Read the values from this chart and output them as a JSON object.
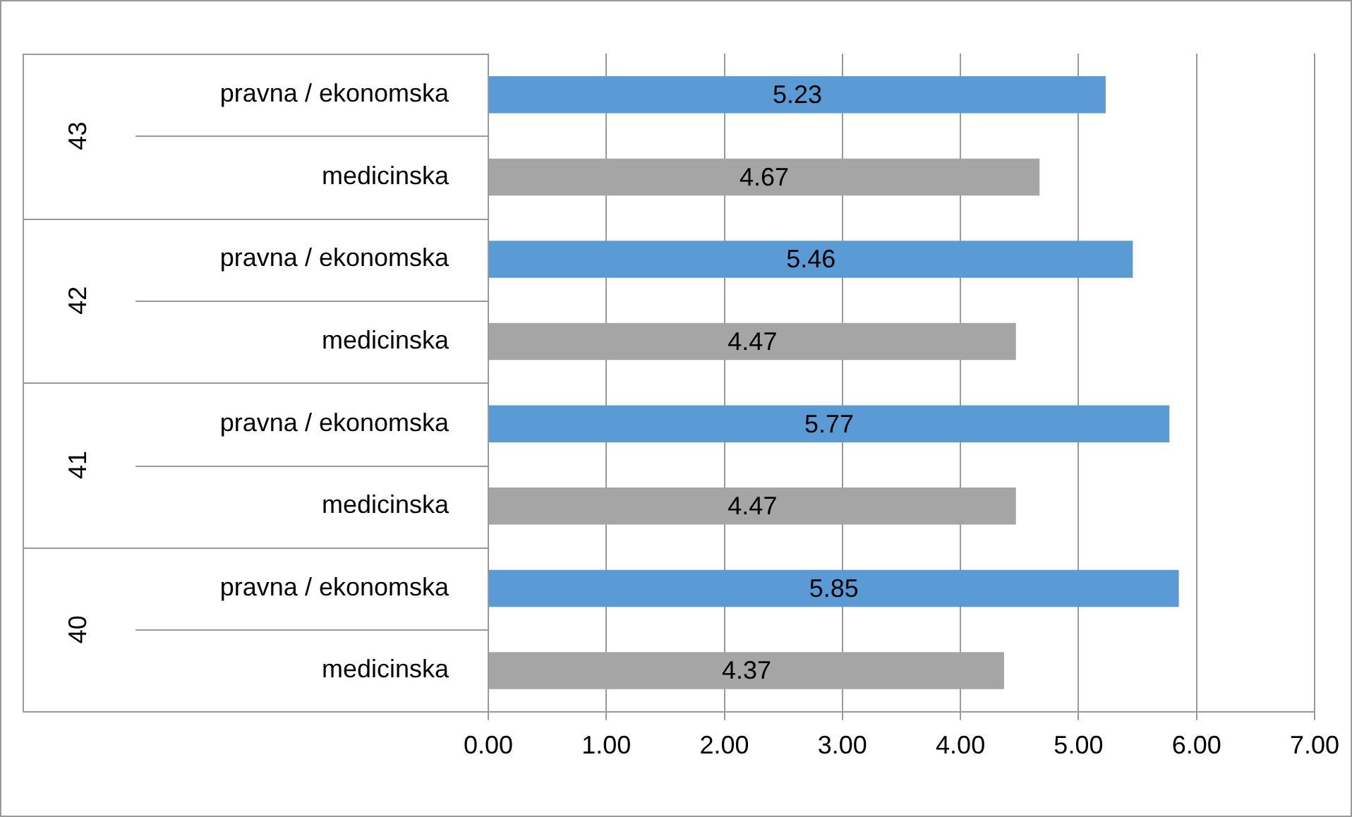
{
  "chart_data": {
    "type": "bar",
    "orientation": "horizontal",
    "categories": [
      "pravna / ekonomska",
      "medicinska",
      "pravna / ekonomska",
      "medicinska",
      "pravna / ekonomska",
      "medicinska",
      "pravna / ekonomska",
      "medicinska"
    ],
    "values": [
      5.23,
      4.67,
      5.46,
      4.47,
      5.77,
      4.47,
      5.85,
      4.37
    ],
    "colors": [
      "#5b9bd5",
      "#a5a5a5",
      "#5b9bd5",
      "#a5a5a5",
      "#5b9bd5",
      "#a5a5a5",
      "#5b9bd5",
      "#a5a5a5"
    ],
    "xlim": [
      0,
      7
    ],
    "xticks": [
      {
        "value": 0,
        "label": "0.00"
      },
      {
        "value": 1,
        "label": "1.00"
      },
      {
        "value": 2,
        "label": "2.00"
      },
      {
        "value": 3,
        "label": "3.00"
      },
      {
        "value": 4,
        "label": "4.00"
      },
      {
        "value": 5,
        "label": "5.00"
      },
      {
        "value": 6,
        "label": "6.00"
      },
      {
        "value": 7,
        "label": "7.00"
      }
    ],
    "grid": "x",
    "data_labels": true,
    "annotations": [
      "43",
      "42",
      "41",
      "40"
    ]
  }
}
